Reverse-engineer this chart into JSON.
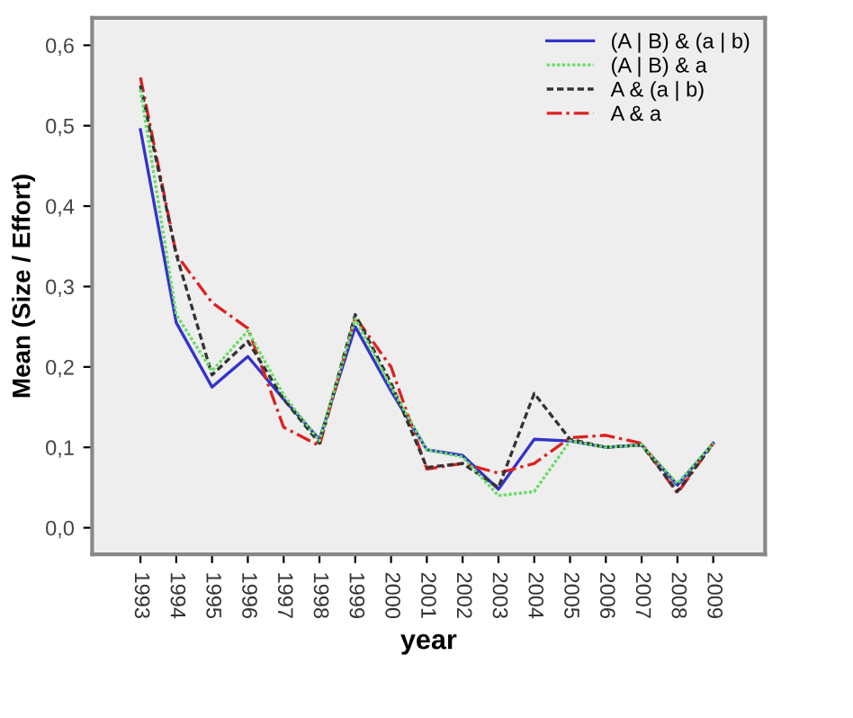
{
  "chart_data": {
    "type": "line",
    "xlabel": "year",
    "ylabel": "Mean (Size / Effort)",
    "categories": [
      "1993",
      "1994",
      "1995",
      "1996",
      "1997",
      "1998",
      "1999",
      "2000",
      "2001",
      "2002",
      "2003",
      "2004",
      "2005",
      "2006",
      "2007",
      "2008",
      "2009"
    ],
    "series": [
      {
        "name": "(A | B) & (a | b)",
        "color": "#3333cc",
        "line_style": "solid",
        "values": [
          0.495,
          0.255,
          0.175,
          0.213,
          0.16,
          0.11,
          0.25,
          0.17,
          0.097,
          0.09,
          0.048,
          0.11,
          0.108,
          0.1,
          0.103,
          0.053,
          0.105
        ]
      },
      {
        "name": "(A | B) & a",
        "color": "#66dd66",
        "line_style": "dotted",
        "values": [
          0.545,
          0.265,
          0.195,
          0.245,
          0.165,
          0.108,
          0.26,
          0.175,
          0.097,
          0.088,
          0.04,
          0.045,
          0.108,
          0.1,
          0.103,
          0.055,
          0.105
        ]
      },
      {
        "name": "A & (a | b)",
        "color": "#333333",
        "line_style": "dashed",
        "values": [
          0.55,
          0.34,
          0.19,
          0.232,
          0.16,
          0.105,
          0.265,
          0.18,
          0.075,
          0.08,
          0.05,
          0.167,
          0.11,
          0.1,
          0.103,
          0.045,
          0.105
        ]
      },
      {
        "name": "A & a",
        "color": "#dd2222",
        "line_style": "dashdot",
        "values": [
          0.56,
          0.34,
          0.28,
          0.248,
          0.125,
          0.102,
          0.262,
          0.2,
          0.073,
          0.08,
          0.068,
          0.08,
          0.112,
          0.115,
          0.105,
          0.043,
          0.105
        ]
      }
    ],
    "ylim": [
      -0.033,
      0.634
    ],
    "yticks": [
      {
        "value": 0.0,
        "label": "0,0"
      },
      {
        "value": 0.1,
        "label": "0,1"
      },
      {
        "value": 0.2,
        "label": "0,2"
      },
      {
        "value": 0.3,
        "label": "0,3"
      },
      {
        "value": 0.4,
        "label": "0,4"
      },
      {
        "value": 0.5,
        "label": "0,5"
      },
      {
        "value": 0.6,
        "label": "0,6"
      }
    ],
    "grid": false,
    "legend": "top right",
    "marker": "none"
  }
}
